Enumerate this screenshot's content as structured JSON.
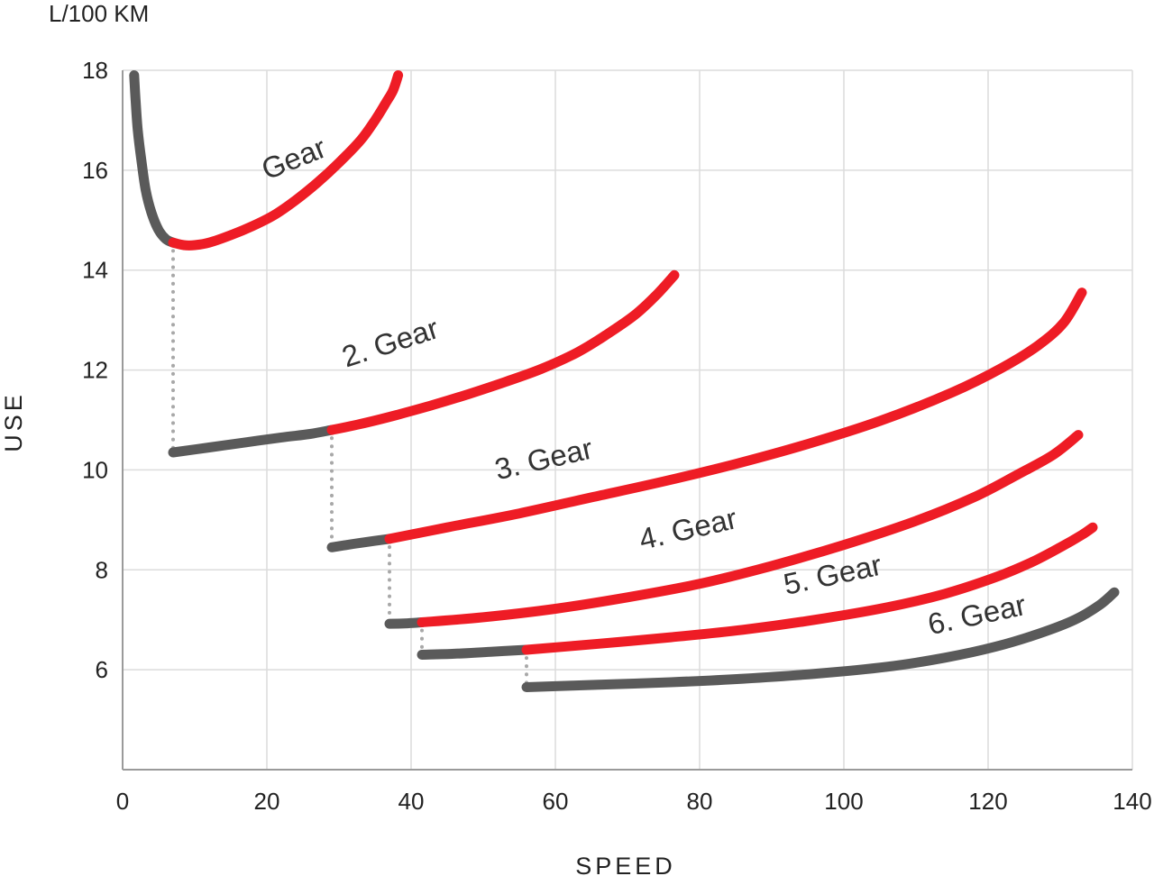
{
  "chart_data": {
    "type": "line",
    "unit_label": "L/100 KM",
    "xlabel": "SPEED",
    "ylabel": "USE",
    "xlim": [
      0,
      140
    ],
    "ylim": [
      4,
      18
    ],
    "xticks": [
      0,
      20,
      40,
      60,
      80,
      100,
      120,
      140
    ],
    "yticks": [
      6,
      8,
      10,
      12,
      14,
      16,
      18
    ],
    "grid": true,
    "colors": {
      "optimal": "#ee1c25",
      "suboptimal": "#5a5a5a",
      "shift": "#a8a8a8",
      "grid": "#dcdcdc",
      "axis": "#9a9a9a"
    },
    "series": [
      {
        "label": "Gear",
        "label_at": [
          20,
          15.8
        ],
        "label_angle": -22,
        "segments": [
          {
            "kind": "suboptimal",
            "points": [
              [
                1.6,
                17.9
              ],
              [
                1.8,
                17.4
              ],
              [
                2.1,
                16.8
              ],
              [
                2.6,
                16.2
              ],
              [
                3.2,
                15.6
              ],
              [
                4.0,
                15.15
              ],
              [
                5.0,
                14.8
              ],
              [
                6.0,
                14.62
              ],
              [
                7.0,
                14.55
              ]
            ]
          },
          {
            "kind": "optimal",
            "points": [
              [
                7.0,
                14.55
              ],
              [
                8.5,
                14.5
              ],
              [
                10,
                14.5
              ],
              [
                12,
                14.55
              ],
              [
                15,
                14.7
              ],
              [
                18,
                14.88
              ],
              [
                21,
                15.1
              ],
              [
                24,
                15.4
              ],
              [
                27,
                15.75
              ],
              [
                30,
                16.15
              ],
              [
                33,
                16.6
              ],
              [
                35,
                17.0
              ],
              [
                36.5,
                17.35
              ],
              [
                37.5,
                17.6
              ],
              [
                38.2,
                17.9
              ]
            ]
          }
        ]
      },
      {
        "label": "2. Gear",
        "label_at": [
          31,
          12.05
        ],
        "label_angle": -18,
        "segments": [
          {
            "kind": "suboptimal",
            "points": [
              [
                7,
                10.35
              ],
              [
                12,
                10.45
              ],
              [
                17,
                10.55
              ],
              [
                22,
                10.65
              ],
              [
                26,
                10.72
              ],
              [
                29,
                10.8
              ]
            ]
          },
          {
            "kind": "optimal",
            "points": [
              [
                29,
                10.8
              ],
              [
                33,
                10.92
              ],
              [
                38,
                11.1
              ],
              [
                43,
                11.3
              ],
              [
                48,
                11.52
              ],
              [
                53,
                11.76
              ],
              [
                58,
                12.02
              ],
              [
                63,
                12.35
              ],
              [
                67,
                12.7
              ],
              [
                71,
                13.1
              ],
              [
                74,
                13.5
              ],
              [
                76.5,
                13.9
              ]
            ]
          }
        ]
      },
      {
        "label": "3. Gear",
        "label_at": [
          52,
          9.8
        ],
        "label_angle": -13,
        "segments": [
          {
            "kind": "suboptimal",
            "points": [
              [
                29,
                8.45
              ],
              [
                32,
                8.52
              ],
              [
                35,
                8.58
              ],
              [
                37,
                8.62
              ]
            ]
          },
          {
            "kind": "optimal",
            "points": [
              [
                37,
                8.62
              ],
              [
                45,
                8.85
              ],
              [
                55,
                9.13
              ],
              [
                65,
                9.45
              ],
              [
                75,
                9.77
              ],
              [
                85,
                10.12
              ],
              [
                95,
                10.52
              ],
              [
                105,
                10.98
              ],
              [
                115,
                11.55
              ],
              [
                122,
                12.05
              ],
              [
                127,
                12.5
              ],
              [
                130.5,
                12.95
              ],
              [
                133,
                13.55
              ]
            ]
          }
        ]
      },
      {
        "label": "4. Gear",
        "label_at": [
          72,
          8.4
        ],
        "label_angle": -13,
        "segments": [
          {
            "kind": "suboptimal",
            "points": [
              [
                37,
                6.92
              ],
              [
                39.5,
                6.93
              ],
              [
                41.5,
                6.95
              ]
            ]
          },
          {
            "kind": "optimal",
            "points": [
              [
                41.5,
                6.95
              ],
              [
                50,
                7.05
              ],
              [
                60,
                7.22
              ],
              [
                70,
                7.45
              ],
              [
                80,
                7.72
              ],
              [
                90,
                8.08
              ],
              [
                100,
                8.5
              ],
              [
                110,
                8.98
              ],
              [
                118,
                9.45
              ],
              [
                124,
                9.9
              ],
              [
                129,
                10.3
              ],
              [
                132.5,
                10.7
              ]
            ]
          }
        ]
      },
      {
        "label": "5. Gear",
        "label_at": [
          92,
          7.5
        ],
        "label_angle": -12,
        "segments": [
          {
            "kind": "suboptimal",
            "points": [
              [
                41.5,
                6.3
              ],
              [
                46,
                6.32
              ],
              [
                51,
                6.36
              ],
              [
                56,
                6.4
              ]
            ]
          },
          {
            "kind": "optimal",
            "points": [
              [
                56,
                6.4
              ],
              [
                66,
                6.52
              ],
              [
                76,
                6.65
              ],
              [
                86,
                6.8
              ],
              [
                96,
                7.0
              ],
              [
                106,
                7.25
              ],
              [
                114,
                7.52
              ],
              [
                121,
                7.85
              ],
              [
                126,
                8.15
              ],
              [
                130,
                8.45
              ],
              [
                133,
                8.7
              ],
              [
                134.5,
                8.85
              ]
            ]
          }
        ]
      },
      {
        "label": "6. Gear",
        "label_at": [
          112,
          6.7
        ],
        "label_angle": -12,
        "segments": [
          {
            "kind": "suboptimal",
            "points": [
              [
                56,
                5.65
              ],
              [
                66,
                5.7
              ],
              [
                76,
                5.75
              ],
              [
                86,
                5.82
              ],
              [
                96,
                5.92
              ],
              [
                106,
                6.06
              ],
              [
                114,
                6.24
              ],
              [
                121,
                6.46
              ],
              [
                127,
                6.72
              ],
              [
                132,
                7.0
              ],
              [
                135.5,
                7.3
              ],
              [
                137.5,
                7.55
              ]
            ]
          }
        ]
      }
    ],
    "shift_lines": [
      [
        [
          7,
          14.55
        ],
        [
          7,
          10.35
        ]
      ],
      [
        [
          29,
          10.8
        ],
        [
          29,
          8.45
        ]
      ],
      [
        [
          37,
          8.62
        ],
        [
          37,
          6.92
        ]
      ],
      [
        [
          41.5,
          6.95
        ],
        [
          41.5,
          6.3
        ]
      ],
      [
        [
          56,
          6.4
        ],
        [
          56,
          5.65
        ]
      ]
    ]
  }
}
